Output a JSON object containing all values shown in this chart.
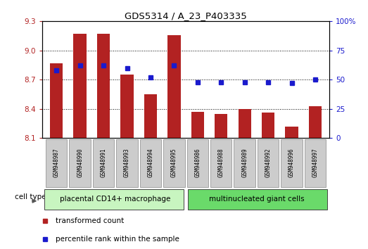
{
  "title": "GDS5314 / A_23_P403335",
  "samples": [
    "GSM948987",
    "GSM948990",
    "GSM948991",
    "GSM948993",
    "GSM948994",
    "GSM948995",
    "GSM948986",
    "GSM948988",
    "GSM948989",
    "GSM948992",
    "GSM948996",
    "GSM948997"
  ],
  "transformed_count": [
    8.87,
    9.17,
    9.17,
    8.75,
    8.55,
    9.16,
    8.37,
    8.35,
    8.4,
    8.36,
    8.22,
    8.43
  ],
  "percentile_rank": [
    58,
    62,
    62,
    60,
    52,
    62,
    48,
    48,
    48,
    48,
    47,
    50
  ],
  "group1_label": "placental CD14+ macrophage",
  "group2_label": "multinucleated giant cells",
  "group1_count": 6,
  "group2_count": 6,
  "ylim_left": [
    8.1,
    9.3
  ],
  "ylim_right": [
    0,
    100
  ],
  "yticks_left": [
    8.1,
    8.4,
    8.7,
    9.0,
    9.3
  ],
  "yticks_right": [
    0,
    25,
    50,
    75,
    100
  ],
  "bar_color": "#b22222",
  "dot_color": "#1a1acd",
  "group1_bg": "#c8f5c0",
  "group2_bg": "#6ada6a",
  "sample_box_bg": "#cccccc",
  "legend_bar_label": "transformed count",
  "legend_dot_label": "percentile rank within the sample",
  "cell_type_label": "cell type",
  "bar_width": 0.55
}
